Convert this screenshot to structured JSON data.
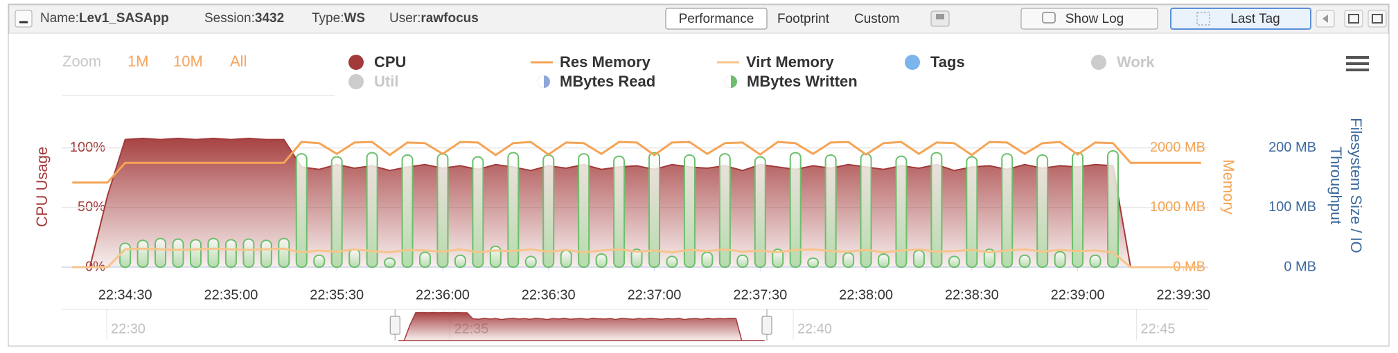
{
  "header": {
    "name_label": "Name:",
    "name": "Lev1_SASApp",
    "session_label": "Session:",
    "session": "3432",
    "type_label": "Type:",
    "type": "WS",
    "user_label": "User:",
    "user": "rawfocus"
  },
  "tabs": [
    "Performance",
    "Footprint",
    "Custom"
  ],
  "active_tab": 0,
  "buttons": {
    "show_log": "Show Log",
    "last_tag": "Last Tag"
  },
  "chart_data": {
    "type": "combo",
    "zoom": {
      "label": "Zoom",
      "options": [
        "1M",
        "10M",
        "All"
      ]
    },
    "x": [
      "22:34:15",
      "22:34:20",
      "22:34:25",
      "22:34:30",
      "22:34:35",
      "22:34:40",
      "22:34:45",
      "22:34:50",
      "22:34:55",
      "22:35:00",
      "22:35:05",
      "22:35:10",
      "22:35:15",
      "22:35:20",
      "22:35:25",
      "22:35:30",
      "22:35:35",
      "22:35:40",
      "22:35:45",
      "22:35:50",
      "22:35:55",
      "22:36:00",
      "22:36:05",
      "22:36:10",
      "22:36:15",
      "22:36:20",
      "22:36:25",
      "22:36:30",
      "22:36:35",
      "22:36:40",
      "22:36:45",
      "22:36:50",
      "22:36:55",
      "22:37:00",
      "22:37:05",
      "22:37:10",
      "22:37:15",
      "22:37:20",
      "22:37:25",
      "22:37:30",
      "22:37:35",
      "22:37:40",
      "22:37:45",
      "22:37:50",
      "22:37:55",
      "22:38:00",
      "22:38:05",
      "22:38:10",
      "22:38:15",
      "22:38:20",
      "22:38:25",
      "22:38:30",
      "22:38:35",
      "22:38:40",
      "22:38:45",
      "22:38:50",
      "22:38:55",
      "22:39:00",
      "22:39:05",
      "22:39:10",
      "22:39:15",
      "22:39:20",
      "22:39:25",
      "22:39:30",
      "22:39:35"
    ],
    "xlim": [
      "22:34:12",
      "22:39:37"
    ],
    "xticks": [
      "22:34:30",
      "22:35:00",
      "22:35:30",
      "22:36:00",
      "22:36:30",
      "22:37:00",
      "22:37:30",
      "22:38:00",
      "22:38:30",
      "22:39:00",
      "22:39:30"
    ],
    "ylabel": "CPU Usage",
    "ylim": [
      0,
      112
    ],
    "yticks": [
      {
        "value": 0,
        "label": "0%"
      },
      {
        "value": 50,
        "label": "50%"
      },
      {
        "value": 100,
        "label": "100%"
      }
    ],
    "y2label": "Memory",
    "y2lim": [
      0,
      2240
    ],
    "y2ticks": [
      {
        "value": 0,
        "label": "0 MB"
      },
      {
        "value": 1000,
        "label": "1000 MB"
      },
      {
        "value": 2000,
        "label": "2000 MB"
      }
    ],
    "y3label": [
      "Filesystem Size / IO",
      "Throughput"
    ],
    "y3lim": [
      0,
      224
    ],
    "y3ticks": [
      {
        "value": 0,
        "label": "0 MB"
      },
      {
        "value": 100,
        "label": "100 MB"
      },
      {
        "value": 200,
        "label": "200 MB"
      }
    ],
    "grid": true,
    "series": [
      {
        "name": "CPU",
        "color": "#a33a3a",
        "kind": "area",
        "axis": "y",
        "values": [
          0,
          0,
          60,
          107,
          108,
          107,
          108,
          107,
          108,
          107,
          108,
          107,
          107,
          84,
          82,
          86,
          83,
          85,
          81,
          84,
          86,
          83,
          85,
          82,
          86,
          84,
          81,
          85,
          83,
          86,
          82,
          84,
          85,
          82,
          86,
          84,
          83,
          85,
          81,
          86,
          84,
          82,
          85,
          83,
          86,
          84,
          82,
          85,
          83,
          86,
          81,
          84,
          85,
          82,
          86,
          83,
          85,
          84,
          86,
          85,
          0,
          0,
          0,
          0,
          0
        ]
      },
      {
        "name": "Res Memory",
        "color": "#f5a455",
        "kind": "line",
        "axis": "y2",
        "values": [
          1420,
          1420,
          1420,
          1750,
          1750,
          1750,
          1750,
          1750,
          1750,
          1750,
          1750,
          1750,
          1750,
          2100,
          2080,
          1900,
          2090,
          2100,
          1880,
          2090,
          2080,
          1900,
          2100,
          2090,
          1880,
          2080,
          2100,
          1890,
          2090,
          2080,
          1900,
          2100,
          2090,
          1880,
          2090,
          2100,
          1900,
          2080,
          2090,
          1890,
          2100,
          2080,
          1900,
          2090,
          2100,
          1890,
          2080,
          2100,
          1900,
          2090,
          2080,
          1880,
          2100,
          2090,
          1900,
          2080,
          2100,
          1890,
          2090,
          2080,
          1750,
          1750,
          1750,
          1750,
          1750
        ]
      },
      {
        "name": "Virt Memory",
        "color": "#f7c48a",
        "kind": "line",
        "axis": "y2",
        "values": [
          0,
          0,
          0,
          300,
          310,
          300,
          290,
          300,
          310,
          300,
          290,
          300,
          310,
          250,
          280,
          260,
          300,
          270,
          250,
          290,
          280,
          260,
          300,
          250,
          280,
          270,
          300,
          260,
          290,
          250,
          280,
          300,
          260,
          280,
          250,
          290,
          270,
          300,
          260,
          280,
          250,
          290,
          300,
          270,
          260,
          290,
          250,
          280,
          300,
          260,
          270,
          290,
          250,
          280,
          300,
          260,
          290,
          270,
          280,
          250,
          0,
          0,
          0,
          0,
          0
        ]
      },
      {
        "name": "MBytes Written",
        "color": "#6cbf6c",
        "kind": "column",
        "axis": "y3",
        "values": [
          0,
          0,
          0,
          40,
          45,
          48,
          47,
          46,
          48,
          46,
          47,
          45,
          48,
          190,
          20,
          185,
          30,
          192,
          15,
          188,
          25,
          190,
          20,
          185,
          35,
          192,
          18,
          188,
          28,
          190,
          22,
          186,
          30,
          192,
          18,
          188,
          25,
          190,
          20,
          185,
          30,
          192,
          15,
          188,
          24,
          190,
          22,
          186,
          28,
          192,
          18,
          185,
          30,
          190,
          20,
          188,
          26,
          192,
          20,
          195,
          0,
          0,
          0,
          0,
          0
        ]
      }
    ],
    "legend_extra": [
      {
        "name": "Util",
        "color": "#cccccc",
        "active": false
      },
      {
        "name": "MBytes Read",
        "color": "#8fa8d8",
        "active": true
      },
      {
        "name": "Tags",
        "color": "#7cb5ec",
        "active": true
      },
      {
        "name": "Work",
        "color": "#cccccc",
        "active": false
      }
    ],
    "navigator": {
      "xticks": [
        "22:30",
        "22:35",
        "22:40",
        "22:45"
      ]
    }
  }
}
